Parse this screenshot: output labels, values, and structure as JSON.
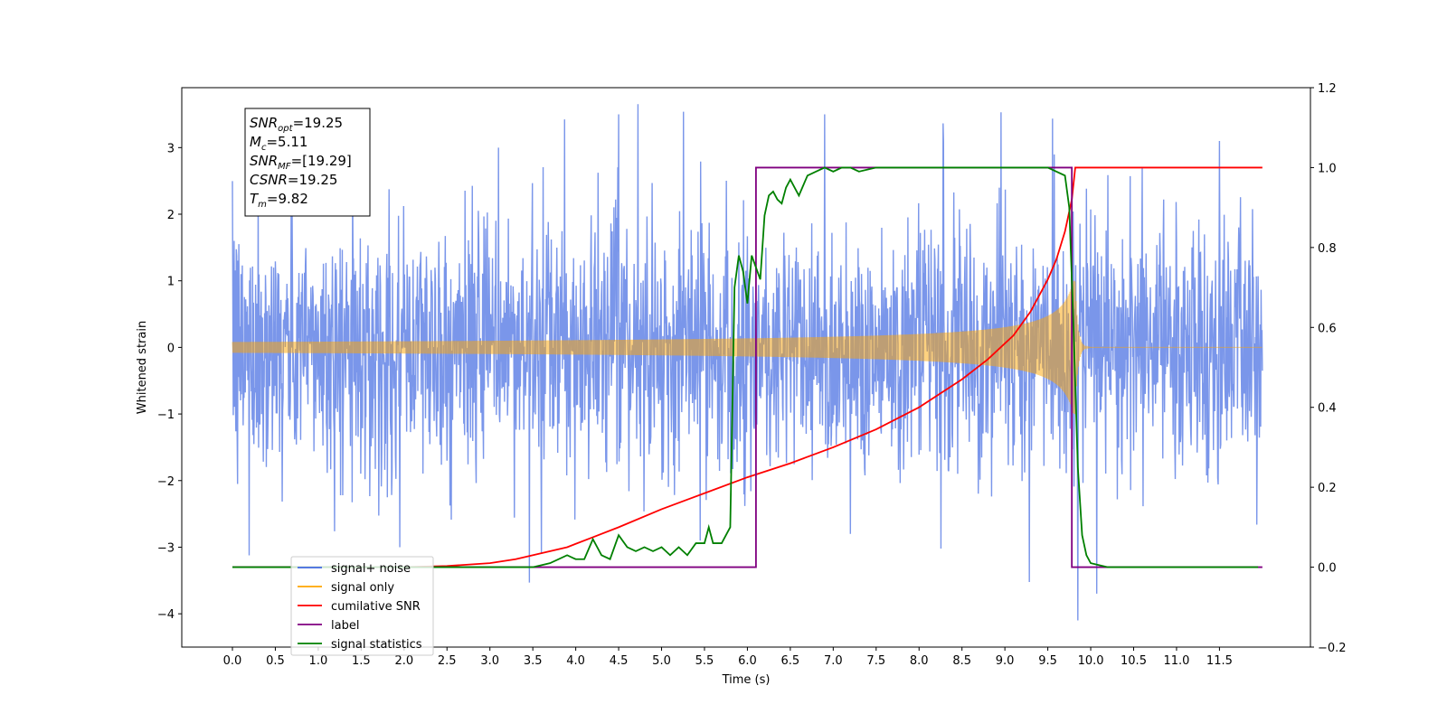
{
  "chart_data": {
    "type": "line",
    "xlabel": "Time (s)",
    "ylabel": "Whitened strain",
    "xlim": [
      -0.59,
      12.56
    ],
    "ylim": [
      -4.5,
      3.9
    ],
    "y2lim": [
      -0.2,
      1.2
    ],
    "x_ticks": [
      0.0,
      0.5,
      1.0,
      1.5,
      2.0,
      2.5,
      3.0,
      3.5,
      4.0,
      4.5,
      5.0,
      5.5,
      6.0,
      6.5,
      7.0,
      7.5,
      8.0,
      8.5,
      9.0,
      9.5,
      10.0,
      10.5,
      11.0,
      11.5
    ],
    "x_tick_labels": [
      "0.0",
      "0.5",
      "1.0",
      "1.5",
      "2.0",
      "2.5",
      "3.0",
      "3.5",
      "4.0",
      "4.5",
      "5.0",
      "5.5",
      "6.0",
      "6.5",
      "7.0",
      "7.5",
      "8.0",
      "8.5",
      "9.0",
      "9.5",
      "10.0",
      "10.5",
      "11.0",
      "11.5"
    ],
    "y_ticks": [
      -4,
      -3,
      -2,
      -1,
      0,
      1,
      2,
      3
    ],
    "y_tick_labels": [
      "−4",
      "−3",
      "−2",
      "−1",
      "0",
      "1",
      "2",
      "3"
    ],
    "y2_ticks": [
      -0.2,
      0.0,
      0.2,
      0.4,
      0.6,
      0.8,
      1.0,
      1.2
    ],
    "y2_tick_labels": [
      "−0.2",
      "0.0",
      "0.2",
      "0.4",
      "0.6",
      "0.8",
      "1.0",
      "1.2"
    ],
    "legend_location": "lower-left",
    "grid": false,
    "annotation": {
      "lines": [
        {
          "base": "SNR",
          "sub": "opt",
          "rest": "=19.25"
        },
        {
          "base": "M",
          "sub": "c",
          "rest": "=5.11"
        },
        {
          "base": "SNR",
          "sub": "MF",
          "rest": "=[19.29]"
        },
        {
          "base": "CSNR",
          "sub": "",
          "rest": "=19.25"
        },
        {
          "base": "T",
          "sub": "m",
          "rest": "=9.82"
        }
      ]
    },
    "series": [
      {
        "name": "signal+ noise",
        "color": "#4169e1",
        "opacity": 0.7,
        "axis": "left",
        "kind": "noise",
        "x_range": [
          0.0,
          12.0
        ],
        "envelope_std": 0.9,
        "spike_peaks": [
          {
            "x": 0.02,
            "y": 1.6
          },
          {
            "x": 0.06,
            "y": -2.05
          },
          {
            "x": 0.3,
            "y": 2.4
          },
          {
            "x": 1.4,
            "y": 2.5
          },
          {
            "x": 1.95,
            "y": -3.0
          },
          {
            "x": 3.1,
            "y": 3.0
          },
          {
            "x": 3.6,
            "y": -3.1
          },
          {
            "x": 4.5,
            "y": 3.5
          },
          {
            "x": 5.45,
            "y": -2.9
          },
          {
            "x": 6.9,
            "y": 3.5
          },
          {
            "x": 7.2,
            "y": -2.8
          },
          {
            "x": 9.85,
            "y": -4.1
          },
          {
            "x": 11.5,
            "y": 3.1
          },
          {
            "x": 10.6,
            "y": 2.7
          }
        ]
      },
      {
        "name": "signal only",
        "color": "#ffa500",
        "opacity": 0.5,
        "axis": "left",
        "kind": "chirp",
        "merger_time": 9.82,
        "x_range": [
          0.0,
          12.0
        ],
        "amplitude_at_merger": 1.0
      },
      {
        "name": "cumilative SNR",
        "color": "#ff0000",
        "axis": "right",
        "x": [
          0.0,
          2.0,
          2.5,
          3.0,
          3.3,
          3.6,
          3.9,
          4.2,
          4.5,
          5.0,
          5.5,
          6.0,
          6.5,
          7.0,
          7.5,
          8.0,
          8.5,
          8.8,
          9.1,
          9.3,
          9.5,
          9.6,
          9.7,
          9.78,
          9.82,
          12.0
        ],
        "y": [
          0.0,
          0.0,
          0.003,
          0.01,
          0.02,
          0.035,
          0.05,
          0.075,
          0.1,
          0.145,
          0.185,
          0.225,
          0.26,
          0.3,
          0.345,
          0.4,
          0.47,
          0.52,
          0.58,
          0.64,
          0.72,
          0.77,
          0.84,
          0.92,
          1.0,
          1.0
        ]
      },
      {
        "name": "label",
        "color": "#800080",
        "axis": "right",
        "x": [
          0.0,
          6.1,
          6.1,
          9.78,
          9.78,
          12.0
        ],
        "y": [
          0.0,
          0.0,
          1.0,
          1.0,
          0.0,
          0.0
        ]
      },
      {
        "name": "signal statistics",
        "color": "#008000",
        "axis": "right",
        "x": [
          0.0,
          3.5,
          3.7,
          3.9,
          4.0,
          4.1,
          4.2,
          4.3,
          4.4,
          4.5,
          4.6,
          4.7,
          4.8,
          4.9,
          5.0,
          5.1,
          5.2,
          5.3,
          5.4,
          5.5,
          5.55,
          5.6,
          5.7,
          5.8,
          5.85,
          5.9,
          5.95,
          6.0,
          6.05,
          6.1,
          6.15,
          6.2,
          6.25,
          6.3,
          6.35,
          6.4,
          6.45,
          6.5,
          6.6,
          6.7,
          6.8,
          6.9,
          7.0,
          7.1,
          7.2,
          7.3,
          7.5,
          7.7,
          8.0,
          8.5,
          9.0,
          9.5,
          9.7,
          9.75,
          9.8,
          9.85,
          9.9,
          9.95,
          10.0,
          10.1,
          10.2,
          10.4,
          11.0,
          11.95
        ],
        "y": [
          0.0,
          0.0,
          0.01,
          0.03,
          0.02,
          0.02,
          0.07,
          0.03,
          0.02,
          0.08,
          0.05,
          0.04,
          0.05,
          0.04,
          0.05,
          0.03,
          0.05,
          0.03,
          0.06,
          0.06,
          0.1,
          0.06,
          0.06,
          0.1,
          0.7,
          0.78,
          0.74,
          0.66,
          0.78,
          0.75,
          0.72,
          0.88,
          0.93,
          0.94,
          0.92,
          0.91,
          0.95,
          0.97,
          0.93,
          0.98,
          0.99,
          1.0,
          0.99,
          1.0,
          1.0,
          0.99,
          1.0,
          1.0,
          1.0,
          1.0,
          1.0,
          1.0,
          0.98,
          0.9,
          0.6,
          0.25,
          0.08,
          0.03,
          0.01,
          0.005,
          0.0,
          0.0,
          0.0,
          0.0
        ]
      }
    ],
    "legend": [
      {
        "label": "signal+ noise",
        "color": "#4169e1"
      },
      {
        "label": "signal only",
        "color": "#ffa500"
      },
      {
        "label": "cumilative SNR",
        "color": "#ff0000"
      },
      {
        "label": "label",
        "color": "#800080"
      },
      {
        "label": "signal statistics",
        "color": "#008000"
      }
    ]
  }
}
